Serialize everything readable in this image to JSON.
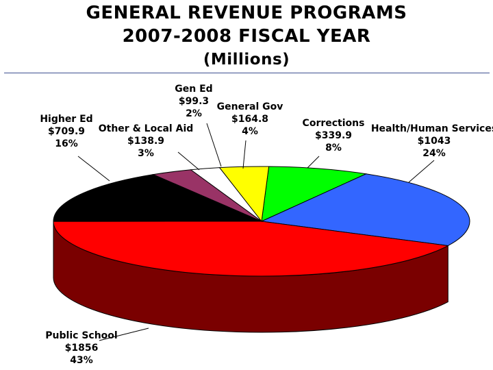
{
  "header": {
    "title_line1": "GENERAL REVENUE PROGRAMS",
    "title_line2": "2007-2008 FISCAL YEAR",
    "title_line3": "(Millions)"
  },
  "chart_data": {
    "type": "pie",
    "title": "GENERAL REVENUE PROGRAMS 2007-2008 FISCAL YEAR",
    "subtitle": "(Millions)",
    "three_d": true,
    "slices": [
      {
        "name": "Corrections",
        "value": 339.9,
        "value_label": "$339.9",
        "percent_label": "8%",
        "color": "#00ff00",
        "side_color": "#007000"
      },
      {
        "name": "Health/Human Services",
        "value": 1043,
        "value_label": "$1043",
        "percent_label": "24%",
        "color": "#3366ff",
        "side_color": "#1a237e"
      },
      {
        "name": "Public School",
        "value": 1856,
        "value_label": "$1856",
        "percent_label": "43%",
        "color": "#ff0000",
        "side_color": "#7a0000"
      },
      {
        "name": "Higher Ed",
        "value": 709.9,
        "value_label": "$709.9",
        "percent_label": "16%",
        "color": "#000000",
        "side_color": "#000000"
      },
      {
        "name": "Other & Local Aid",
        "value": 138.9,
        "value_label": "$138.9",
        "percent_label": "3%",
        "color": "#993366",
        "side_color": "#4d1933"
      },
      {
        "name": "Gen Ed",
        "value": 99.3,
        "value_label": "$99.3",
        "percent_label": "2%",
        "color": "#ffffff",
        "side_color": "#cccccc"
      },
      {
        "name": "General Gov",
        "value": 164.8,
        "value_label": "$164.8",
        "percent_label": "4%",
        "color": "#ffff00",
        "side_color": "#808000"
      }
    ]
  }
}
